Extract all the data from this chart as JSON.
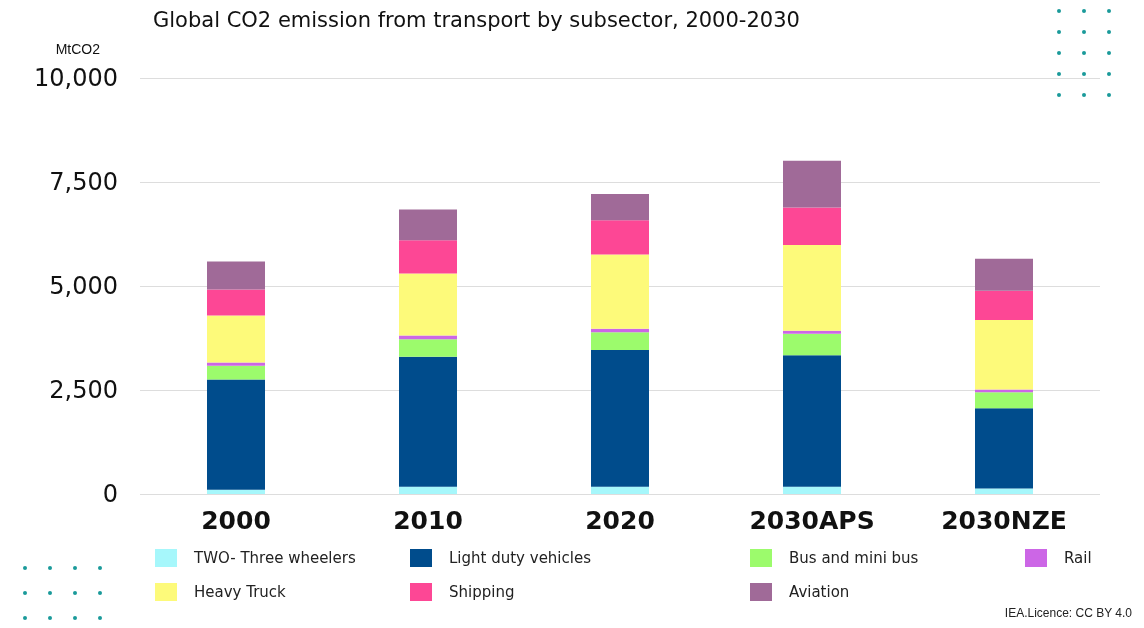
{
  "chart_data": {
    "type": "bar",
    "title": "Global CO2 emission from transport by subsector, 2000-2030",
    "ylabel": "MtCO2",
    "categories": [
      "2000",
      "2010",
      "2020",
      "2030APS",
      "2030NZE"
    ],
    "stacked": true,
    "series": [
      {
        "name": "TWO- Three wheelers",
        "color": "#a6f7fb",
        "values": [
          100,
          175,
          175,
          175,
          130
        ]
      },
      {
        "name": "Light duty vehicles",
        "color": "#004c8c",
        "values": [
          2650,
          3125,
          3285,
          3160,
          1930
        ]
      },
      {
        "name": "Bus and mini bus",
        "color": "#9cfb6c",
        "values": [
          330,
          420,
          430,
          520,
          385
        ]
      },
      {
        "name": "Rail",
        "color": "#cc66e6",
        "values": [
          80,
          90,
          85,
          70,
          70
        ]
      },
      {
        "name": "Heavy Truck",
        "color": "#fdfa7a",
        "values": [
          1130,
          1490,
          1785,
          2060,
          1670
        ]
      },
      {
        "name": "Shipping",
        "color": "#fd4795",
        "values": [
          625,
          800,
          820,
          900,
          700
        ]
      },
      {
        "name": "Aviation",
        "color": "#a06a98",
        "values": [
          675,
          740,
          630,
          1125,
          770
        ]
      }
    ],
    "ylim": [
      0,
      10000
    ],
    "yticks": [
      0,
      {
        "value": 2500,
        "label": "2,500"
      },
      {
        "value": 5000,
        "label": "5,000"
      },
      {
        "value": 7500,
        "label": "7,500"
      },
      {
        "value": 10000,
        "label": "10,000"
      }
    ],
    "grid": "y",
    "legend": "bottom",
    "annotations": [
      "IEA.Licence: CC BY 4.0"
    ]
  }
}
